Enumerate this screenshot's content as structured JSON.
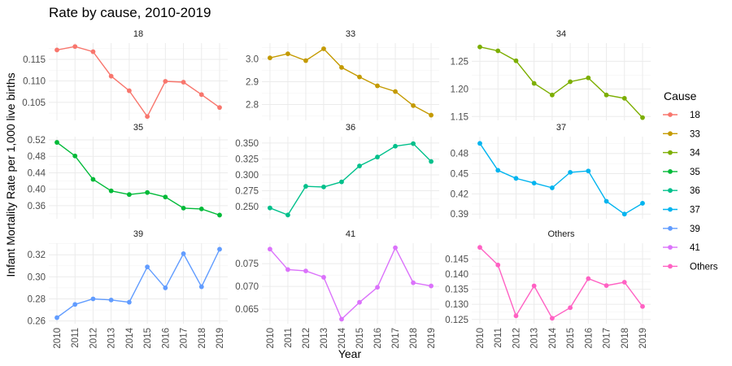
{
  "chart_data": {
    "type": "line",
    "title": "Rate by cause, 2010-2019",
    "xlabel": "Year",
    "ylabel": "Infant Mortality Rate per 1,000 live births",
    "x": [
      2010,
      2011,
      2012,
      2013,
      2014,
      2015,
      2016,
      2017,
      2018,
      2019
    ],
    "legend": {
      "title": "Cause",
      "position": "right"
    },
    "grid": true,
    "facets": [
      {
        "name": "18",
        "color": "#F8766D",
        "ylim": [
          0.1008,
          0.1188
        ],
        "yticks": [
          0.105,
          0.11,
          0.115
        ],
        "ytick_labels": [
          "0.105",
          "0.110",
          "0.115"
        ],
        "values": [
          0.1172,
          0.118,
          0.1168,
          0.1111,
          0.1077,
          0.1017,
          0.1099,
          0.1097,
          0.1068,
          0.1038
        ]
      },
      {
        "name": "33",
        "color": "#C49A00",
        "ylim": [
          2.73,
          3.07
        ],
        "yticks": [
          2.8,
          2.9,
          3.0
        ],
        "ytick_labels": [
          "2.8",
          "2.9",
          "3.0"
        ],
        "values": [
          3.005,
          3.023,
          2.993,
          3.045,
          2.963,
          2.921,
          2.882,
          2.857,
          2.795,
          2.753
        ]
      },
      {
        "name": "34",
        "color": "#7CAE00",
        "ylim": [
          1.143,
          1.283
        ],
        "yticks": [
          1.15,
          1.2,
          1.25
        ],
        "ytick_labels": [
          "1.15",
          "1.20",
          "1.25"
        ],
        "values": [
          1.276,
          1.269,
          1.251,
          1.21,
          1.189,
          1.213,
          1.22,
          1.189,
          1.183,
          1.148
        ]
      },
      {
        "name": "35",
        "color": "#00BA38",
        "ylim": [
          0.328,
          0.528
        ],
        "yticks": [
          0.36,
          0.4,
          0.44,
          0.48,
          0.52
        ],
        "ytick_labels": [
          "0.36",
          "0.40",
          "0.44",
          "0.48",
          "0.52"
        ],
        "values": [
          0.514,
          0.481,
          0.424,
          0.396,
          0.387,
          0.392,
          0.381,
          0.354,
          0.352,
          0.337
        ]
      },
      {
        "name": "36",
        "color": "#00C08B",
        "ylim": [
          0.231,
          0.36
        ],
        "yticks": [
          0.25,
          0.275,
          0.3,
          0.325,
          0.35
        ],
        "ytick_labels": [
          "0.250",
          "0.275",
          "0.300",
          "0.325",
          "0.350"
        ],
        "values": [
          0.248,
          0.237,
          0.282,
          0.281,
          0.289,
          0.314,
          0.328,
          0.345,
          0.349,
          0.321
        ]
      },
      {
        "name": "37",
        "color": "#00B4EF",
        "ylim": [
          0.383,
          0.505
        ],
        "yticks": [
          0.39,
          0.42,
          0.45,
          0.48
        ],
        "ytick_labels": [
          "0.39",
          "0.42",
          "0.45",
          "0.48"
        ],
        "values": [
          0.495,
          0.455,
          0.443,
          0.436,
          0.429,
          0.452,
          0.454,
          0.409,
          0.39,
          0.406
        ]
      },
      {
        "name": "39",
        "color": "#619CFF",
        "ylim": [
          0.2575,
          0.3305
        ],
        "yticks": [
          0.26,
          0.28,
          0.3,
          0.32
        ],
        "ytick_labels": [
          "0.26",
          "0.28",
          "0.30",
          "0.32"
        ],
        "values": [
          0.263,
          0.275,
          0.28,
          0.279,
          0.277,
          0.309,
          0.29,
          0.321,
          0.291,
          0.325
        ]
      },
      {
        "name": "41",
        "color": "#DB72FB",
        "ylim": [
          0.0618,
          0.0795
        ],
        "yticks": [
          0.065,
          0.07,
          0.075
        ],
        "ytick_labels": [
          "0.065",
          "0.070",
          "0.075"
        ],
        "values": [
          0.0782,
          0.0737,
          0.0734,
          0.072,
          0.0628,
          0.0665,
          0.0698,
          0.0785,
          0.0708,
          0.0701
        ]
      },
      {
        "name": "Others",
        "color": "#FF61C3",
        "ylim": [
          0.1236,
          0.1502
        ],
        "yticks": [
          0.125,
          0.13,
          0.135,
          0.14,
          0.145
        ],
        "ytick_labels": [
          "0.125",
          "0.130",
          "0.135",
          "0.140",
          "0.145"
        ],
        "values": [
          0.1488,
          0.143,
          0.1262,
          0.1361,
          0.1254,
          0.1289,
          0.1385,
          0.1362,
          0.1373,
          0.1293
        ]
      }
    ]
  }
}
